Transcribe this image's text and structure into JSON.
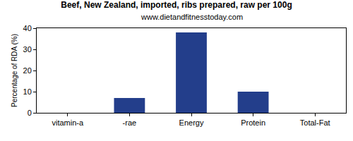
{
  "chart_data": {
    "type": "bar",
    "title": "Beef, New Zealand, imported, ribs prepared, raw per 100g",
    "subtitle": "www.dietandfitnesstoday.com",
    "y_label": "Percentage of RDA (%)",
    "categories": [
      "vitamin-a",
      "-rae",
      "Energy",
      "Protein",
      "Total-Fat"
    ],
    "values": [
      0,
      7,
      38,
      10,
      0
    ],
    "color": "#233e8b",
    "ylim": [
      0,
      40
    ],
    "yticks": [
      0,
      10,
      20,
      30,
      40
    ],
    "grid": false
  }
}
